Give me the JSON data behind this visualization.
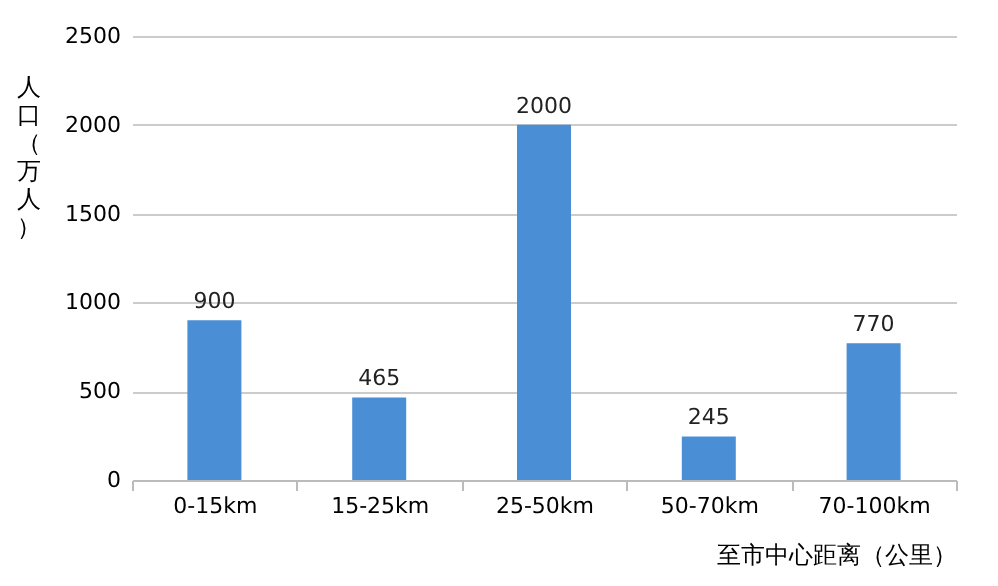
{
  "chart_data": {
    "type": "bar",
    "xlabel": "至市中心距离（公里）",
    "ylabel": "人口（万人）",
    "categories": [
      "0-15km",
      "15-25km",
      "25-50km",
      "50-70km",
      "70-100km"
    ],
    "values": [
      900,
      465,
      2000,
      245,
      770
    ],
    "color": "#4a8fd6",
    "ylim": [
      0,
      2500
    ],
    "yticks": [
      0,
      500,
      1000,
      1500,
      2000,
      2500
    ],
    "grid": "y",
    "data_labels": true
  }
}
